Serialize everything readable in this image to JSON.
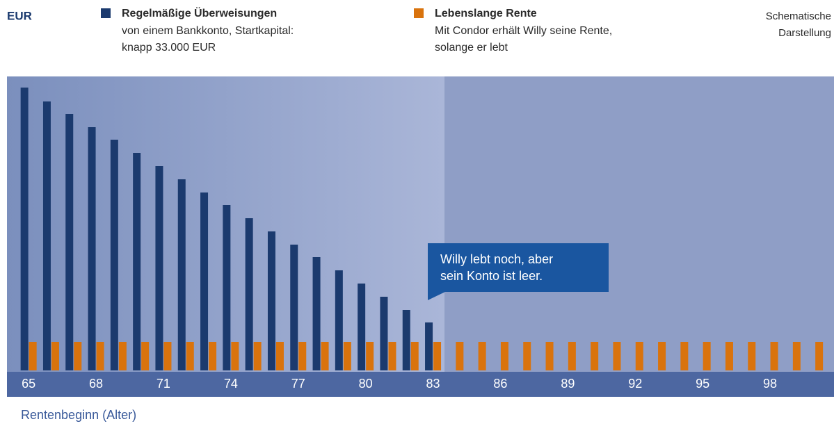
{
  "chart_data": {
    "type": "bar",
    "unit_label": "EUR",
    "note": [
      "Schematische",
      "Darstellung"
    ],
    "xlabel": "Rentenbeginn (Alter)",
    "categories": [
      "65",
      null,
      null,
      "68",
      null,
      null,
      "71",
      null,
      null,
      "74",
      null,
      null,
      "77",
      null,
      null,
      "80",
      null,
      null,
      "83",
      null,
      null,
      "86",
      null,
      null,
      "89",
      null,
      null,
      "92",
      null,
      null,
      "95",
      null,
      null,
      "98",
      null,
      null
    ],
    "series": [
      {
        "name": "Regelmäßige Überweisungen",
        "description": [
          "von einem Bankkonto, Startkapital:",
          "knapp 33.000 EUR"
        ],
        "color": "#1b3a6e",
        "values": [
          407,
          387,
          369,
          350,
          332,
          313,
          294,
          275,
          256,
          238,
          219,
          200,
          181,
          163,
          144,
          125,
          106,
          87,
          69,
          null,
          null,
          null,
          null,
          null,
          null,
          null,
          null,
          null,
          null,
          null,
          null,
          null,
          null,
          null,
          null,
          null
        ]
      },
      {
        "name": "Lebenslange Rente",
        "description": [
          "Mit Condor erhält Willy seine Rente,",
          "solange er lebt"
        ],
        "color": "#d9730d",
        "values": [
          41,
          41,
          41,
          41,
          41,
          41,
          41,
          41,
          41,
          41,
          41,
          41,
          41,
          41,
          41,
          41,
          41,
          41,
          41,
          41,
          41,
          41,
          41,
          41,
          41,
          41,
          41,
          41,
          41,
          41,
          41,
          41,
          41,
          41,
          41,
          41
        ]
      }
    ],
    "annotation": [
      "Willy lebt noch, aber",
      "sein Konto ist leer."
    ],
    "ylim": [
      0,
      423
    ]
  }
}
